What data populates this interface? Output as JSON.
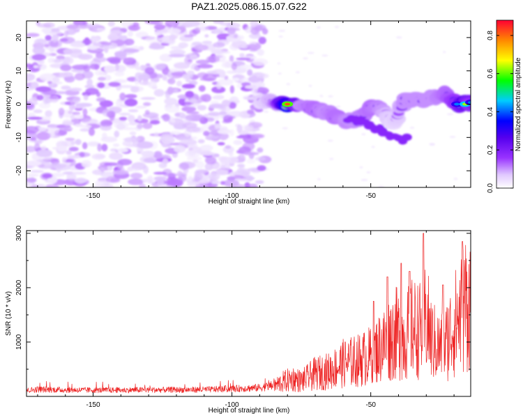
{
  "title": "PAZ1.2025.086.15.07.G22",
  "chart_data": [
    {
      "type": "heatmap",
      "name": "spectrogram",
      "xlabel": "Height of straight line (km)",
      "ylabel": "Frequency (Hz)",
      "xlim": [
        -174,
        -14
      ],
      "ylim": [
        -25,
        25
      ],
      "xticks": [
        -150,
        -100,
        -50
      ],
      "yticks": [
        -20,
        -10,
        0,
        10,
        20
      ],
      "grid": false,
      "colorbar": {
        "label": "Normalized spectral amplitude",
        "range": [
          0,
          0.88
        ],
        "ticks": [
          "0.0",
          "0.2",
          "0.4",
          "0.6",
          "0.8"
        ],
        "colormap": [
          "#ffffff",
          "#e0c8ff",
          "#9933ff",
          "#5500ee",
          "#0000ff",
          "#00ccff",
          "#00ff00",
          "#ffff00",
          "#ff8800",
          "#ff0033"
        ]
      },
      "noise_region": {
        "x_range": [
          -174,
          -88
        ],
        "freq_range": [
          -25,
          25
        ],
        "amplitude": 0.12
      },
      "ridge": [
        {
          "x": -90,
          "freq": 1.0,
          "amp": 0.15
        },
        {
          "x": -84,
          "freq": 0.5,
          "amp": 0.3
        },
        {
          "x": -80,
          "freq": 0.0,
          "amp": 0.82
        },
        {
          "x": -75,
          "freq": 0.0,
          "amp": 0.3
        },
        {
          "x": -70,
          "freq": -1.5,
          "amp": 0.35
        },
        {
          "x": -66,
          "freq": -2.5,
          "amp": 0.3
        },
        {
          "x": -62,
          "freq": -4.0,
          "amp": 0.35
        },
        {
          "x": -58,
          "freq": -5.0,
          "amp": 0.3
        },
        {
          "x": -55,
          "freq": -5.0,
          "amp": 0.3
        },
        {
          "x": -50,
          "freq": -1.0,
          "amp": 0.35
        },
        {
          "x": -46,
          "freq": -1.0,
          "amp": 0.3
        },
        {
          "x": -42,
          "freq": -6.0,
          "amp": 0.15
        },
        {
          "x": -38,
          "freq": 1.0,
          "amp": 0.3
        },
        {
          "x": -32,
          "freq": 1.5,
          "amp": 0.3
        },
        {
          "x": -27,
          "freq": 2.0,
          "amp": 0.3
        },
        {
          "x": -23,
          "freq": 3.0,
          "amp": 0.35
        },
        {
          "x": -19,
          "freq": 0.0,
          "amp": 0.45
        },
        {
          "x": -16,
          "freq": 0.0,
          "amp": 0.65
        },
        {
          "x": -14,
          "freq": 0.5,
          "amp": 0.45
        }
      ]
    },
    {
      "type": "line",
      "name": "snr",
      "xlabel": "Height of straight line (km)",
      "ylabel": "SNR (10 * v/v)",
      "xlim": [
        -174,
        -14
      ],
      "ylim": [
        0,
        3050
      ],
      "xticks": [
        -150,
        -100,
        -50
      ],
      "yticks": [
        1000,
        2000,
        3000
      ],
      "grid": false,
      "color": "#ee2222",
      "x": [
        -174,
        -170,
        -160,
        -150,
        -140,
        -130,
        -120,
        -110,
        -100,
        -95,
        -90,
        -85,
        -82,
        -78,
        -75,
        -70,
        -65,
        -60,
        -55,
        -50,
        -47,
        -44,
        -41,
        -38,
        -35,
        -32,
        -30,
        -28,
        -25,
        -23,
        -21,
        -19,
        -17,
        -16,
        -15,
        -14
      ],
      "y": [
        110,
        130,
        120,
        115,
        115,
        120,
        120,
        125,
        140,
        150,
        160,
        200,
        280,
        350,
        300,
        450,
        500,
        650,
        700,
        800,
        950,
        1100,
        1250,
        1150,
        1350,
        1300,
        1550,
        1100,
        950,
        1050,
        1300,
        1500,
        1700,
        1900,
        1800,
        1850
      ],
      "peaks": [
        {
          "x": -31,
          "y": 3000
        },
        {
          "x": -17,
          "y": 2850
        },
        {
          "x": -39,
          "y": 2450
        },
        {
          "x": -44,
          "y": 2200
        },
        {
          "x": -36,
          "y": 2300
        },
        {
          "x": -49,
          "y": 1750
        },
        {
          "x": -24,
          "y": 2050
        }
      ]
    }
  ]
}
